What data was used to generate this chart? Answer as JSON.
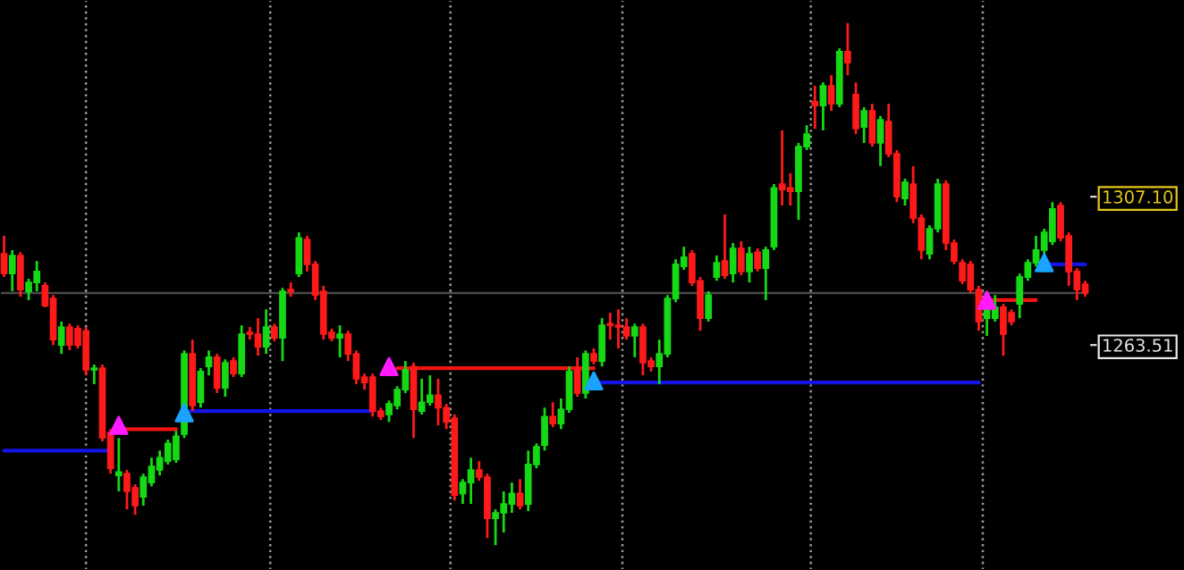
{
  "chart_data": {
    "type": "candlestick",
    "categories": [
      null,
      null,
      null,
      null,
      null,
      null,
      null,
      null,
      null,
      null,
      null,
      null,
      null,
      null,
      null,
      null,
      null,
      null,
      null,
      null,
      null,
      null,
      null,
      null,
      null,
      null,
      null,
      null,
      null,
      null,
      null,
      null,
      null,
      null,
      null,
      null,
      null,
      null,
      null,
      null,
      null,
      null,
      null,
      null,
      null,
      null,
      null,
      null,
      null,
      null,
      null,
      null,
      null,
      null,
      null,
      null,
      null,
      null,
      null,
      null,
      null,
      null,
      null,
      null,
      null,
      null,
      null,
      null,
      null,
      null,
      null,
      null,
      null,
      null,
      null,
      null,
      null,
      null,
      null,
      null,
      null,
      null,
      null,
      null,
      null,
      null,
      null,
      null,
      null,
      null,
      null,
      null,
      null,
      null,
      null,
      null,
      null,
      null,
      null,
      null,
      null,
      null,
      null,
      null,
      null,
      null,
      null,
      null,
      null,
      null,
      null,
      null,
      null,
      null,
      null,
      null,
      null,
      null,
      null,
      null,
      null,
      null,
      null,
      null,
      null,
      null,
      null,
      null,
      null,
      null,
      null,
      null,
      null
    ],
    "ohlc": [
      [
        1290.3,
        1295.6,
        1283.5,
        1284.5
      ],
      [
        1284.5,
        1291.4,
        1279.3,
        1289.8
      ],
      [
        1289.8,
        1290.8,
        1277.7,
        1279.8
      ],
      [
        1279.3,
        1283.0,
        1276.7,
        1281.9
      ],
      [
        1281.9,
        1288.2,
        1279.3,
        1285.1
      ],
      [
        1280.9,
        1281.9,
        1274.6,
        1275.1
      ],
      [
        1277.2,
        1278.2,
        1263.5,
        1265.1
      ],
      [
        1263.5,
        1270.4,
        1260.9,
        1268.8
      ],
      [
        1268.8,
        1269.8,
        1262.0,
        1263.5
      ],
      [
        1268.3,
        1269.3,
        1262.5,
        1263.5
      ],
      [
        1267.7,
        1268.8,
        1254.6,
        1256.2
      ],
      [
        1256.2,
        1257.8,
        1252.0,
        1256.7
      ],
      [
        1256.7,
        1257.8,
        1235.2,
        1236.2
      ],
      [
        1237.8,
        1238.8,
        1225.7,
        1227.3
      ],
      [
        1225.2,
        1236.2,
        1220.5,
        1226.2
      ],
      [
        1225.7,
        1226.8,
        1215.2,
        1220.5
      ],
      [
        1221.5,
        1222.6,
        1213.6,
        1216.3
      ],
      [
        1218.9,
        1225.7,
        1216.3,
        1224.7
      ],
      [
        1223.1,
        1230.4,
        1222.0,
        1227.8
      ],
      [
        1226.8,
        1232.5,
        1225.2,
        1230.4
      ],
      [
        1229.4,
        1235.7,
        1228.4,
        1234.6
      ],
      [
        1229.9,
        1238.3,
        1228.9,
        1236.7
      ],
      [
        1237.3,
        1261.9,
        1236.2,
        1260.9
      ],
      [
        1260.9,
        1265.1,
        1244.1,
        1245.7
      ],
      [
        1246.7,
        1256.7,
        1245.1,
        1255.7
      ],
      [
        1257.2,
        1261.9,
        1254.6,
        1259.9
      ],
      [
        1259.9,
        1260.9,
        1249.4,
        1250.9
      ],
      [
        1250.9,
        1259.3,
        1248.3,
        1258.3
      ],
      [
        1258.8,
        1259.9,
        1254.1,
        1255.1
      ],
      [
        1255.1,
        1269.3,
        1254.1,
        1266.7
      ],
      [
        1267.2,
        1268.8,
        1265.1,
        1266.7
      ],
      [
        1266.7,
        1271.4,
        1260.4,
        1263.0
      ],
      [
        1263.0,
        1274.0,
        1260.9,
        1268.8
      ],
      [
        1268.8,
        1269.8,
        1264.6,
        1265.6
      ],
      [
        1265.6,
        1280.3,
        1258.8,
        1279.3
      ],
      [
        1279.8,
        1281.9,
        1277.7,
        1279.3
      ],
      [
        1284.5,
        1296.6,
        1283.5,
        1295.0
      ],
      [
        1294.5,
        1295.6,
        1285.1,
        1287.2
      ],
      [
        1287.2,
        1288.2,
        1276.7,
        1278.2
      ],
      [
        1279.3,
        1280.9,
        1265.1,
        1266.7
      ],
      [
        1267.2,
        1268.3,
        1264.6,
        1265.6
      ],
      [
        1265.6,
        1269.3,
        1259.9,
        1266.7
      ],
      [
        1266.7,
        1267.7,
        1258.8,
        1260.9
      ],
      [
        1260.9,
        1261.9,
        1252.0,
        1253.6
      ],
      [
        1254.1,
        1255.1,
        1250.4,
        1252.5
      ],
      [
        1254.1,
        1255.1,
        1242.5,
        1244.1
      ],
      [
        1244.1,
        1245.1,
        1241.5,
        1242.5
      ],
      [
        1243.1,
        1247.2,
        1240.9,
        1246.2
      ],
      [
        1245.7,
        1251.4,
        1244.6,
        1250.4
      ],
      [
        1250.4,
        1258.8,
        1249.4,
        1256.2
      ],
      [
        1257.2,
        1258.3,
        1236.2,
        1244.6
      ],
      [
        1244.1,
        1253.6,
        1243.1,
        1246.7
      ],
      [
        1246.7,
        1254.6,
        1245.7,
        1248.8
      ],
      [
        1248.8,
        1253.6,
        1239.9,
        1245.1
      ],
      [
        1245.1,
        1246.2,
        1238.8,
        1240.9
      ],
      [
        1242.0,
        1243.1,
        1217.8,
        1219.4
      ],
      [
        1219.9,
        1224.1,
        1216.8,
        1223.1
      ],
      [
        1223.1,
        1230.4,
        1216.8,
        1226.8
      ],
      [
        1226.8,
        1229.4,
        1223.6,
        1224.7
      ],
      [
        1224.7,
        1225.7,
        1206.8,
        1212.6
      ],
      [
        1212.6,
        1215.2,
        1204.7,
        1214.2
      ],
      [
        1214.2,
        1220.5,
        1208.4,
        1216.8
      ],
      [
        1216.8,
        1223.1,
        1214.2,
        1219.9
      ],
      [
        1219.9,
        1224.1,
        1215.2,
        1216.3
      ],
      [
        1216.8,
        1232.5,
        1214.7,
        1228.4
      ],
      [
        1228.4,
        1234.6,
        1227.3,
        1233.6
      ],
      [
        1234.1,
        1245.1,
        1232.5,
        1242.5
      ],
      [
        1242.5,
        1246.7,
        1239.4,
        1240.4
      ],
      [
        1240.4,
        1247.8,
        1238.8,
        1244.6
      ],
      [
        1244.6,
        1257.2,
        1243.6,
        1255.7
      ],
      [
        1256.2,
        1259.9,
        1248.3,
        1249.4
      ],
      [
        1249.4,
        1261.9,
        1247.8,
        1260.9
      ],
      [
        1260.9,
        1262.5,
        1257.8,
        1258.8
      ],
      [
        1258.8,
        1271.4,
        1257.2,
        1269.3
      ],
      [
        1269.8,
        1273.0,
        1265.1,
        1269.3
      ],
      [
        1269.3,
        1274.0,
        1262.5,
        1268.8
      ],
      [
        1268.8,
        1271.4,
        1265.1,
        1266.2
      ],
      [
        1266.2,
        1269.8,
        1259.9,
        1268.8
      ],
      [
        1268.8,
        1269.8,
        1254.6,
        1258.3
      ],
      [
        1258.8,
        1259.9,
        1255.7,
        1257.2
      ],
      [
        1257.2,
        1265.1,
        1252.0,
        1260.9
      ],
      [
        1260.9,
        1278.2,
        1259.9,
        1277.2
      ],
      [
        1277.2,
        1288.7,
        1276.1,
        1287.2
      ],
      [
        1286.6,
        1292.4,
        1285.6,
        1289.3
      ],
      [
        1290.3,
        1291.4,
        1280.9,
        1281.9
      ],
      [
        1282.4,
        1283.5,
        1267.7,
        1271.4
      ],
      [
        1271.4,
        1279.3,
        1270.4,
        1278.2
      ],
      [
        1283.5,
        1289.8,
        1282.4,
        1287.7
      ],
      [
        1288.2,
        1301.9,
        1283.0,
        1284.0
      ],
      [
        1284.5,
        1293.5,
        1281.9,
        1291.9
      ],
      [
        1291.9,
        1294.0,
        1284.0,
        1285.1
      ],
      [
        1285.1,
        1292.4,
        1281.9,
        1290.3
      ],
      [
        1290.8,
        1291.9,
        1285.1,
        1286.1
      ],
      [
        1286.1,
        1292.4,
        1276.7,
        1291.4
      ],
      [
        1292.4,
        1310.8,
        1291.4,
        1309.7
      ],
      [
        1310.8,
        1326.6,
        1304.5,
        1309.2
      ],
      [
        1309.7,
        1314.0,
        1304.5,
        1308.7
      ],
      [
        1308.7,
        1322.9,
        1300.3,
        1321.8
      ],
      [
        1321.8,
        1328.1,
        1320.8,
        1325.5
      ],
      [
        1335.0,
        1339.7,
        1327.1,
        1333.9
      ],
      [
        1333.9,
        1340.7,
        1326.6,
        1339.7
      ],
      [
        1339.7,
        1342.8,
        1332.3,
        1334.4
      ],
      [
        1334.4,
        1350.7,
        1333.4,
        1349.7
      ],
      [
        1349.7,
        1358.1,
        1342.8,
        1346.5
      ],
      [
        1337.1,
        1340.7,
        1325.5,
        1327.1
      ],
      [
        1327.6,
        1333.4,
        1322.9,
        1332.3
      ],
      [
        1332.3,
        1334.4,
        1321.8,
        1322.9
      ],
      [
        1322.9,
        1330.8,
        1316.1,
        1329.7
      ],
      [
        1329.2,
        1334.4,
        1318.7,
        1319.7
      ],
      [
        1319.7,
        1320.8,
        1305.5,
        1307.1
      ],
      [
        1306.6,
        1312.4,
        1304.5,
        1311.3
      ],
      [
        1310.8,
        1316.1,
        1299.3,
        1300.8
      ],
      [
        1300.8,
        1301.9,
        1288.7,
        1291.4
      ],
      [
        1290.3,
        1298.7,
        1288.7,
        1297.7
      ],
      [
        1297.7,
        1312.4,
        1296.6,
        1310.8
      ],
      [
        1310.8,
        1311.9,
        1291.4,
        1293.5
      ],
      [
        1293.5,
        1294.5,
        1287.2,
        1288.2
      ],
      [
        1287.7,
        1288.7,
        1281.4,
        1282.4
      ],
      [
        1287.2,
        1288.2,
        1278.8,
        1279.8
      ],
      [
        1279.8,
        1280.9,
        1267.7,
        1270.4
      ],
      [
        1271.4,
        1275.1,
        1266.2,
        1274.0
      ],
      [
        1271.4,
        1278.2,
        1270.4,
        1274.6
      ],
      [
        1274.6,
        1275.6,
        1260.4,
        1266.7
      ],
      [
        1273.0,
        1274.0,
        1269.3,
        1270.4
      ],
      [
        1275.6,
        1284.5,
        1271.4,
        1283.5
      ],
      [
        1283.5,
        1288.7,
        1282.4,
        1287.7
      ],
      [
        1287.7,
        1295.6,
        1286.6,
        1291.4
      ],
      [
        1291.4,
        1297.7,
        1290.3,
        1296.6
      ],
      [
        1294.0,
        1305.5,
        1292.9,
        1303.5
      ],
      [
        1304.5,
        1305.5,
        1294.0,
        1295.0
      ],
      [
        1295.6,
        1296.6,
        1280.9,
        1285.1
      ],
      [
        1285.1,
        1286.1,
        1276.7,
        1279.8
      ],
      [
        1281.4,
        1282.4,
        1277.7,
        1278.8
      ]
    ],
    "series": [
      {
        "type": "line",
        "color": "#1414e6",
        "values": [
          1232.5,
          1232.5,
          1232.5,
          1232.5,
          1232.5,
          1232.5,
          1232.5,
          1232.5,
          1232.5,
          1232.5,
          1232.5,
          1232.5,
          1232.5,
          1232.5,
          null,
          null,
          null,
          null,
          null,
          null,
          null,
          null,
          1244.1,
          1244.1,
          1244.1,
          1244.1,
          1244.1,
          1244.1,
          1244.1,
          1244.1,
          1244.1,
          1244.1,
          1244.1,
          1244.1,
          1244.1,
          1244.1,
          1244.1,
          1244.1,
          1244.1,
          1244.1,
          1244.1,
          1244.1,
          1244.1,
          1244.1,
          1244.1,
          1244.1,
          null,
          null,
          null,
          null,
          null,
          null,
          null,
          null,
          null,
          null,
          null,
          null,
          null,
          null,
          null,
          null,
          null,
          null,
          null,
          null,
          null,
          null,
          null,
          null,
          null,
          null,
          1252.5,
          1252.5,
          1252.5,
          1252.5,
          1252.5,
          1252.5,
          1252.5,
          1252.5,
          1252.5,
          1252.5,
          1252.5,
          1252.5,
          1252.5,
          1252.5,
          1252.5,
          1252.5,
          1252.5,
          1252.5,
          1252.5,
          1252.5,
          1252.5,
          1252.5,
          1252.5,
          1252.5,
          1252.5,
          1252.5,
          1252.5,
          1252.5,
          1252.5,
          1252.5,
          1252.5,
          1252.5,
          1252.5,
          1252.5,
          1252.5,
          1252.5,
          1252.5,
          1252.5,
          1252.5,
          1252.5,
          1252.5,
          1252.5,
          1252.5,
          1252.5,
          1252.5,
          1252.5,
          1252.5,
          1252.5,
          null,
          null,
          null,
          null,
          null,
          null,
          null,
          1287.2,
          1287.2,
          1287.2,
          1287.2,
          1287.2,
          1287.2
        ]
      },
      {
        "type": "line",
        "color": "#f01414",
        "values": [
          null,
          null,
          null,
          null,
          null,
          null,
          null,
          null,
          null,
          null,
          null,
          null,
          null,
          null,
          1238.8,
          1238.8,
          1238.8,
          1238.8,
          1238.8,
          1238.8,
          1238.8,
          1238.8,
          null,
          null,
          null,
          null,
          null,
          null,
          null,
          null,
          null,
          null,
          null,
          null,
          null,
          null,
          null,
          null,
          null,
          null,
          null,
          null,
          null,
          null,
          null,
          null,
          null,
          null,
          1256.7,
          1256.7,
          1256.7,
          1256.7,
          1256.7,
          1256.7,
          1256.7,
          1256.7,
          1256.7,
          1256.7,
          1256.7,
          1256.7,
          1256.7,
          1256.7,
          1256.7,
          1256.7,
          1256.7,
          1256.7,
          1256.7,
          1256.7,
          1256.7,
          1256.7,
          1256.7,
          1256.7,
          1256.7,
          null,
          null,
          null,
          null,
          null,
          null,
          null,
          null,
          null,
          null,
          null,
          null,
          null,
          null,
          null,
          null,
          null,
          null,
          null,
          null,
          null,
          null,
          null,
          null,
          null,
          null,
          null,
          null,
          null,
          null,
          null,
          null,
          null,
          null,
          null,
          null,
          null,
          null,
          null,
          null,
          null,
          null,
          null,
          null,
          null,
          null,
          null,
          1276.7,
          1276.7,
          1276.7,
          1276.7,
          1276.7,
          1276.7,
          1276.7,
          null,
          null,
          null,
          null,
          null,
          null
        ]
      },
      {
        "type": "scatter",
        "marker": "triangle",
        "color": "#ff1aff",
        "values": [
          null,
          null,
          null,
          null,
          null,
          null,
          null,
          null,
          null,
          null,
          null,
          null,
          null,
          null,
          1239.9,
          null,
          null,
          null,
          null,
          null,
          null,
          null,
          null,
          null,
          null,
          null,
          null,
          null,
          null,
          null,
          null,
          null,
          null,
          null,
          null,
          null,
          null,
          null,
          null,
          null,
          null,
          null,
          null,
          null,
          null,
          null,
          null,
          1257.2,
          null,
          null,
          null,
          null,
          null,
          null,
          null,
          null,
          null,
          null,
          null,
          null,
          null,
          null,
          null,
          null,
          null,
          null,
          null,
          null,
          null,
          null,
          null,
          null,
          null,
          null,
          null,
          null,
          null,
          null,
          null,
          null,
          null,
          null,
          null,
          null,
          null,
          null,
          null,
          null,
          null,
          null,
          null,
          null,
          null,
          null,
          null,
          null,
          null,
          null,
          null,
          null,
          null,
          null,
          null,
          null,
          null,
          null,
          null,
          null,
          null,
          null,
          null,
          null,
          null,
          null,
          null,
          null,
          null,
          null,
          null,
          null,
          1276.7,
          null,
          null,
          null,
          null,
          null,
          null,
          null,
          null,
          null,
          null,
          null,
          null
        ]
      },
      {
        "type": "scatter",
        "marker": "triangle",
        "color": "#1aa3ff",
        "values": [
          null,
          null,
          null,
          null,
          null,
          null,
          null,
          null,
          null,
          null,
          null,
          null,
          null,
          null,
          null,
          null,
          null,
          null,
          null,
          null,
          null,
          null,
          1243.6,
          null,
          null,
          null,
          null,
          null,
          null,
          null,
          null,
          null,
          null,
          null,
          null,
          null,
          null,
          null,
          null,
          null,
          null,
          null,
          null,
          null,
          null,
          null,
          null,
          null,
          null,
          null,
          null,
          null,
          null,
          null,
          null,
          null,
          null,
          null,
          null,
          null,
          null,
          null,
          null,
          null,
          null,
          null,
          null,
          null,
          null,
          null,
          null,
          null,
          1253.0,
          null,
          null,
          null,
          null,
          null,
          null,
          null,
          null,
          null,
          null,
          null,
          null,
          null,
          null,
          null,
          null,
          null,
          null,
          null,
          null,
          null,
          null,
          null,
          null,
          null,
          null,
          null,
          null,
          null,
          null,
          null,
          null,
          null,
          null,
          null,
          null,
          null,
          null,
          null,
          null,
          null,
          null,
          null,
          null,
          null,
          null,
          null,
          null,
          null,
          null,
          null,
          null,
          null,
          null,
          1287.7,
          null,
          null,
          null,
          null,
          null
        ]
      }
    ],
    "ref_lines": [
      {
        "axis": "y",
        "value": 1278.8,
        "color": "#4a4a4a",
        "line_style": "solid"
      }
    ],
    "ylim": [
      1197.4,
      1364.9
    ],
    "yticks": [
      1263.51,
      {
        "value": 1307.1,
        "label": "1307.10"
      }
    ],
    "tick_labels": "y"
  }
}
